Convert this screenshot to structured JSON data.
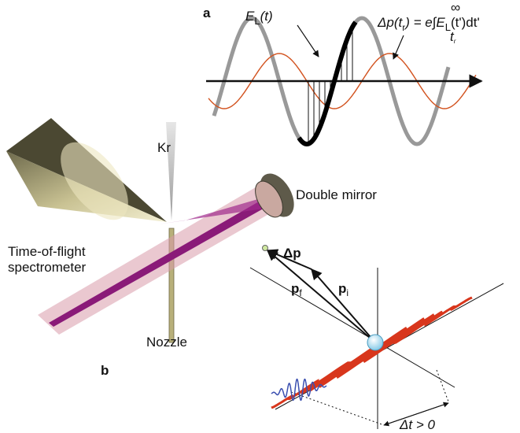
{
  "panel_a": {
    "letter": "a",
    "field_label": {
      "symbol": "E",
      "subscript": "L",
      "argument": "(t)"
    },
    "formula": {
      "lhs": "Δp(t",
      "lhs_subscript": "r",
      "lhs_end": ") = e",
      "integral": "∫",
      "upper_limit": "∞",
      "lower_limit": "t",
      "lower_limit_subscript": "r",
      "integrand": "E",
      "integrand_subscript": "L",
      "integrand_end": "(t')dt'"
    }
  },
  "panel_b": {
    "letter": "b",
    "gas": "Kr",
    "mirror": "Double mirror",
    "spectrometer": [
      "Time-of-flight",
      "spectrometer"
    ],
    "nozzle": "Nozzle",
    "momentum_change": "Δp",
    "final_momentum": {
      "symbol": "p",
      "subscript": "f"
    },
    "initial_momentum": {
      "symbol": "p",
      "subscript": "i"
    },
    "delay": "Δt > 0"
  }
}
